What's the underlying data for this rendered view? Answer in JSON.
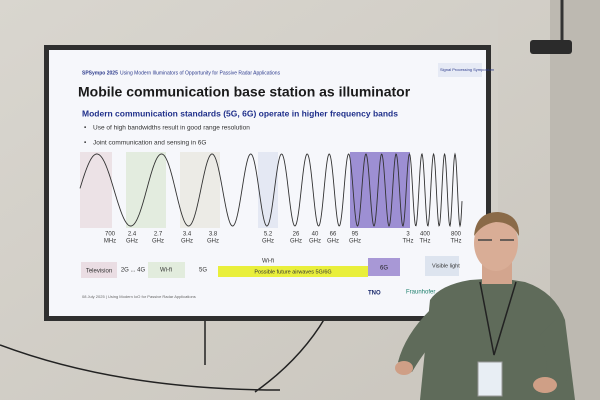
{
  "slide": {
    "header": {
      "event": "SPSympo 2025",
      "topic": "Using Modern Illuminators of Opportunity for Passive Radar Applications",
      "logo": "Signal Processing Symposium"
    },
    "title": "Mobile communication base station as illuminator",
    "subtitle": "Modern communication standards (5G, 6G) operate in higher frequency bands",
    "bullets": [
      "Use of high bandwidths result in good range resolution",
      "Joint communication and sensing in 6G"
    ],
    "frequencies": [
      {
        "value": "700",
        "unit": "MHz"
      },
      {
        "value": "2.4",
        "unit": "GHz"
      },
      {
        "value": "2.7",
        "unit": "GHz"
      },
      {
        "value": "3.4",
        "unit": "GHz"
      },
      {
        "value": "3.8",
        "unit": "GHz"
      },
      {
        "value": "5.2",
        "unit": "GHz"
      },
      {
        "value": "26",
        "unit": "GHz"
      },
      {
        "value": "40",
        "unit": "GHz"
      },
      {
        "value": "66",
        "unit": "GHz"
      },
      {
        "value": "95",
        "unit": "GHz"
      },
      {
        "value": "3",
        "unit": "THz"
      },
      {
        "value": "400",
        "unit": "THz"
      },
      {
        "value": "800",
        "unit": "THz"
      }
    ],
    "bands": [
      "Television",
      "2G ... 4G",
      "Wi-fi",
      "5G",
      "Wi-fi",
      "Possible future airwaves 5G/6G",
      "6G",
      "Visible light"
    ],
    "footer": {
      "date": "08 July 2025 | Using Modern IoO for Passive Radar Applications",
      "logo1": "TNO",
      "logo2": "Fraunhofer"
    }
  }
}
